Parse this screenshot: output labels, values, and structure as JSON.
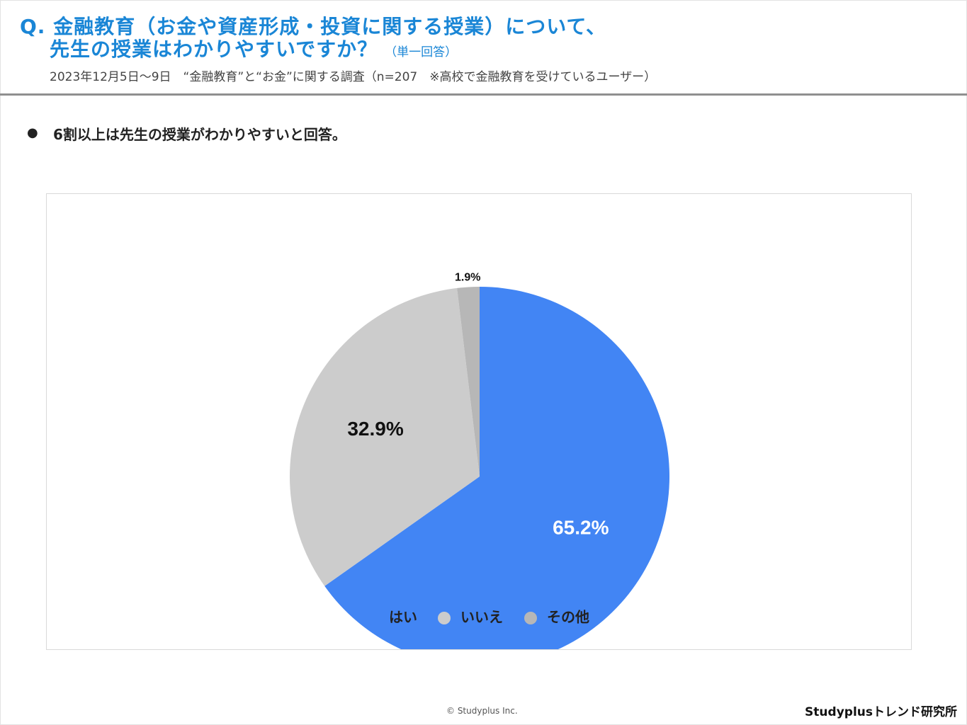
{
  "header": {
    "question_line1": "Q. 金融教育（お金や資産形成・投資に関する授業）について、",
    "question_line2": "先生の授業はわかりやすいですか？",
    "answer_type": "（単一回答）",
    "survey_info": "2023年12月5日〜9日　“金融教育”と“お金”に関する調査（n=207　※高校で金融教育を受けているユーザー）"
  },
  "summary": {
    "bullet": "●",
    "text": "6割以上は先生の授業がわかりやすいと回答。"
  },
  "chart_data": {
    "type": "pie",
    "start": "12 o'clock, clockwise",
    "legend_position": "bottom",
    "slices": [
      {
        "label": "はい",
        "value": 65.2,
        "value_label": "65.2%",
        "color": "#4285f4",
        "label_color": "#ffffff"
      },
      {
        "label": "いいえ",
        "value": 32.9,
        "value_label": "32.9%",
        "color": "#cccccc",
        "label_color": "#111111"
      },
      {
        "label": "その他",
        "value": 1.9,
        "value_label": "1.9%",
        "color": "#b7b7b7",
        "label_color": "#111111"
      }
    ]
  },
  "footer": {
    "copyright": "© Studyplus Inc.",
    "brand": "Studyplusトレンド研究所"
  }
}
